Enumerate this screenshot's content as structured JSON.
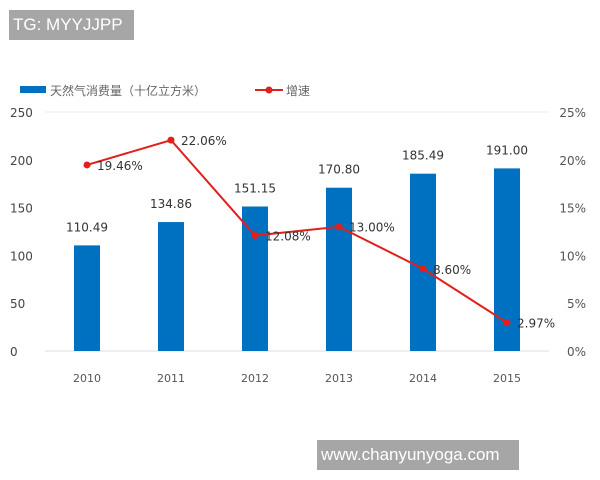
{
  "watermarks": {
    "top": "TG: MYYJJPP",
    "bottom": "www.chanyunyoga.com"
  },
  "chart_data": {
    "type": "bar+line",
    "categories": [
      "2010",
      "2011",
      "2012",
      "2013",
      "2014",
      "2015"
    ],
    "series": [
      {
        "name": "天然气消费量（十亿立方米）",
        "type": "bar",
        "axis": "left",
        "color": "#0070c0",
        "values": [
          110.49,
          134.86,
          151.15,
          170.8,
          185.49,
          191.0
        ],
        "labels": [
          "110.49",
          "134.86",
          "151.15",
          "170.80",
          "185.49",
          "191.00"
        ]
      },
      {
        "name": "增速",
        "type": "line",
        "axis": "right",
        "color": "#e0201b",
        "values": [
          19.46,
          22.06,
          12.08,
          13.0,
          8.6,
          2.97
        ],
        "labels": [
          "19.46%",
          "22.06%",
          "12.08%",
          "13.00%",
          "8.60%",
          "2.97%"
        ]
      }
    ],
    "ylim_left": [
      0,
      250
    ],
    "yticks_left": [
      "0",
      "50",
      "100",
      "150",
      "200",
      "250"
    ],
    "ylim_right": [
      0,
      25
    ],
    "yticks_right": [
      "0%",
      "5%",
      "10%",
      "15%",
      "20%",
      "25%"
    ],
    "legend": "top-left",
    "grid": false
  }
}
